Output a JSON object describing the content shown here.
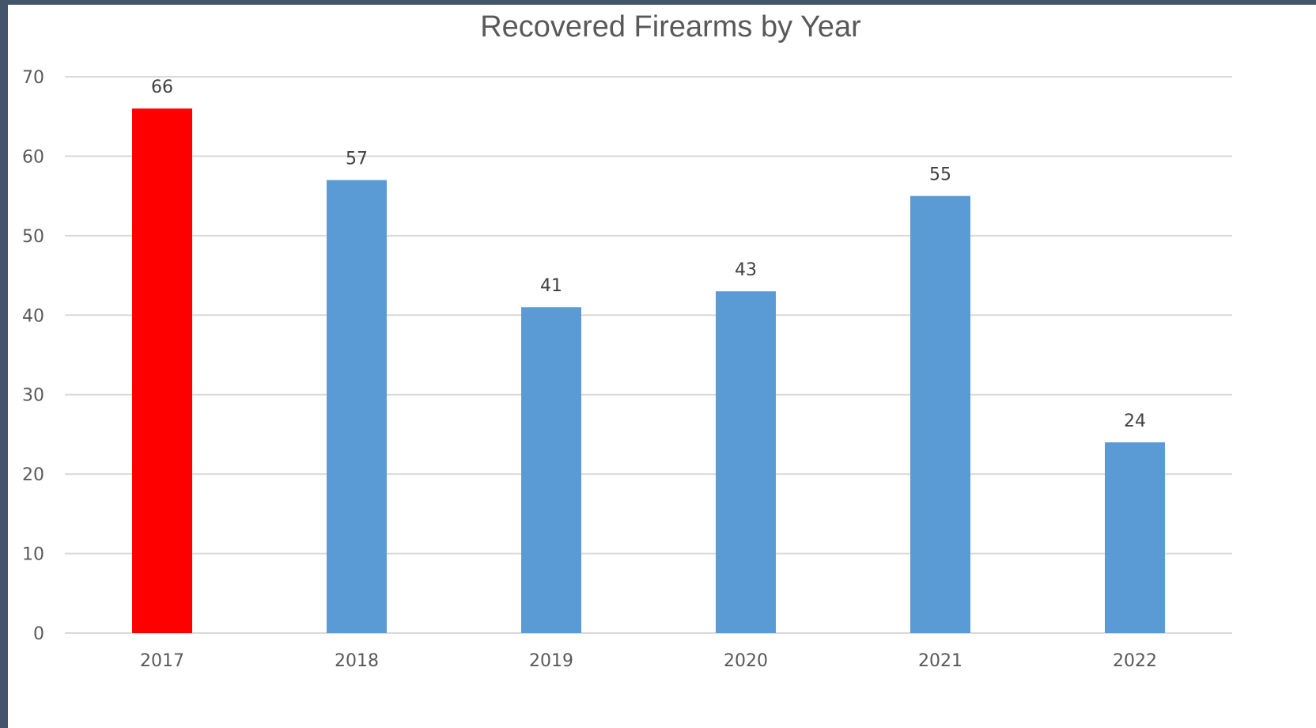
{
  "chart_data": {
    "type": "bar",
    "title": "Recovered Firearms by Year",
    "xlabel": "",
    "ylabel": "",
    "categories": [
      "2017",
      "2018",
      "2019",
      "2020",
      "2021",
      "2022"
    ],
    "values": [
      66,
      57,
      41,
      43,
      55,
      24
    ],
    "data_labels": [
      "66",
      "57",
      "41",
      "43",
      "55",
      "24"
    ],
    "ylim": [
      0,
      70
    ],
    "yticks": [
      0,
      10,
      20,
      30,
      40,
      50,
      60,
      70
    ],
    "ytick_labels": [
      "0",
      "10",
      "20",
      "30",
      "40",
      "50",
      "60",
      "70"
    ],
    "grid": true,
    "legend": "none",
    "bar_colors": [
      "#ff0000",
      "#5b9bd5",
      "#5b9bd5",
      "#5b9bd5",
      "#5b9bd5",
      "#5b9bd5"
    ],
    "gridline_color": "#d9d9d9"
  }
}
